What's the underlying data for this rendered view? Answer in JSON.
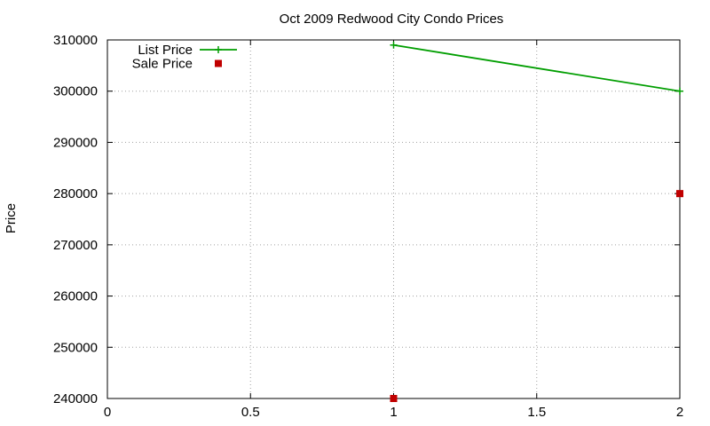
{
  "chart_data": {
    "type": "line",
    "title": "Oct 2009 Redwood City Condo Prices",
    "xlabel": "",
    "ylabel": "Price",
    "xlim": [
      0,
      2
    ],
    "ylim": [
      240000,
      310000
    ],
    "x_ticks": [
      {
        "value": 0,
        "label": "0"
      },
      {
        "value": 0.5,
        "label": "0.5"
      },
      {
        "value": 1,
        "label": "1"
      },
      {
        "value": 1.5,
        "label": "1.5"
      },
      {
        "value": 2,
        "label": "2"
      }
    ],
    "y_ticks": [
      {
        "value": 240000,
        "label": "240000"
      },
      {
        "value": 250000,
        "label": "250000"
      },
      {
        "value": 260000,
        "label": "260000"
      },
      {
        "value": 270000,
        "label": "270000"
      },
      {
        "value": 280000,
        "label": "280000"
      },
      {
        "value": 290000,
        "label": "290000"
      },
      {
        "value": 300000,
        "label": "300000"
      },
      {
        "value": 310000,
        "label": "310000"
      }
    ],
    "grid": true,
    "legend_position": "top-left",
    "series": [
      {
        "name": "List Price",
        "style": "linespoints",
        "marker": "plus",
        "color": "#009e00",
        "points": [
          {
            "x": 1,
            "y": 309000
          },
          {
            "x": 2,
            "y": 300000
          }
        ]
      },
      {
        "name": "Sale Price",
        "style": "points",
        "marker": "square",
        "color": "#c00000",
        "points": [
          {
            "x": 1,
            "y": 240000
          },
          {
            "x": 2,
            "y": 280000
          }
        ]
      }
    ]
  }
}
